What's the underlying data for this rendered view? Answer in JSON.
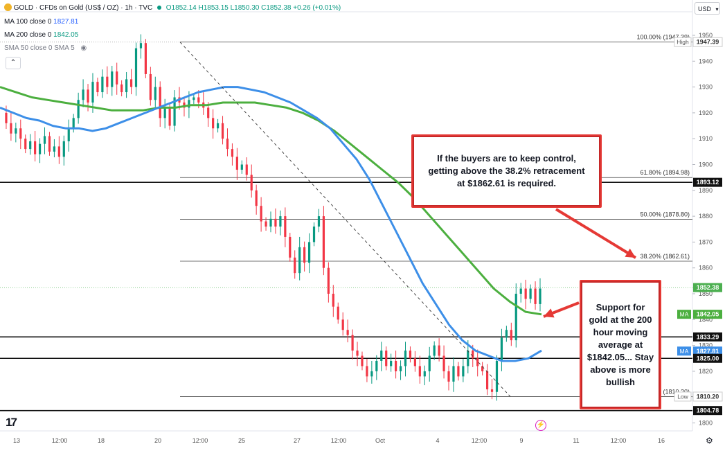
{
  "header": {
    "title": "GOLD · CFDs on Gold (US$ / OZ) · 1h · TVC",
    "ohlc": "O1852.14 H1853.15 L1850.30 C1852.38 +0.26 (+0.01%)",
    "ma100_label": "MA 100 close 0",
    "ma100_value": "1827.81",
    "ma200_label": "MA 200 close 0",
    "ma200_value": "1842.05",
    "sma_label": "SMA 50 close 0 SMA 5",
    "currency": "USD"
  },
  "callouts": {
    "top": "If the buyers are to keep control, getting above the 38.2% retracement at $1862.61 is required.",
    "right": "Support for gold at the 200 hour moving average at $1842.05... Stay above is more bullish"
  },
  "colors": {
    "ma100": "#3d8fe8",
    "ma200": "#4caf3f",
    "up": "#089981",
    "down": "#f23645",
    "arrow": "#e53935",
    "price_tag": "#4caf50"
  },
  "chart_data": {
    "type": "candlestick",
    "y_ticks": [
      1800,
      1810,
      1820,
      1830,
      1840,
      1850,
      1860,
      1870,
      1880,
      1890,
      1900,
      1910,
      1920,
      1930,
      1940,
      1950
    ],
    "ylim": [
      1797.5,
      1955
    ],
    "x_ticks": [
      "13",
      "12:00",
      "18",
      "20",
      "12:00",
      "25",
      "27",
      "12:00",
      "Oct",
      "4",
      "12:00",
      "9",
      "11",
      "12:00",
      "16"
    ],
    "fib_levels": [
      {
        "label": "100.00% (1947.39)",
        "value": 1947.39
      },
      {
        "label": "61.80% (1894.98)",
        "value": 1894.98
      },
      {
        "label": "50.00% (1878.80)",
        "value": 1878.8
      },
      {
        "label": "38.20% (1862.61)",
        "value": 1862.61
      },
      {
        "label": "(1810.20)",
        "value": 1810.2
      }
    ],
    "horizontal_lines": [
      1893.12,
      1833.29,
      1825.0,
      1804.78
    ],
    "price_labels": [
      {
        "text": "High",
        "value": "1947.39",
        "price": 1947.39,
        "style": "outline"
      },
      {
        "text": "",
        "value": "1893.12",
        "price": 1893.12,
        "style": "black"
      },
      {
        "text": "",
        "value": "1852.38",
        "price": 1852.38,
        "style": "price"
      },
      {
        "text": "MA",
        "value": "1842.05",
        "price": 1842.05,
        "style": "ma200"
      },
      {
        "text": "",
        "value": "1833.29",
        "price": 1833.29,
        "style": "black"
      },
      {
        "text": "MA",
        "value": "1827.81",
        "price": 1827.81,
        "style": "ma100"
      },
      {
        "text": "",
        "value": "1825.00",
        "price": 1825.0,
        "style": "black"
      },
      {
        "text": "Low",
        "value": "1810.20",
        "price": 1810.2,
        "style": "outline"
      },
      {
        "text": "",
        "value": "1804.78",
        "price": 1804.78,
        "style": "black"
      }
    ],
    "price_path": [
      1920,
      1916,
      1912,
      1914,
      1910,
      1906,
      1909,
      1904,
      1908,
      1911,
      1905,
      1907,
      1903,
      1909,
      1914,
      1918,
      1925,
      1929,
      1924,
      1932,
      1928,
      1934,
      1930,
      1936,
      1931,
      1928,
      1933,
      1930,
      1945,
      1947,
      1935,
      1925,
      1930,
      1918,
      1922,
      1915,
      1926,
      1924,
      1922,
      1925,
      1926,
      1924,
      1922,
      1918,
      1914,
      1916,
      1910,
      1906,
      1903,
      1898,
      1900,
      1896,
      1890,
      1884,
      1878,
      1876,
      1879,
      1876,
      1880,
      1872,
      1864,
      1858,
      1868,
      1862,
      1870,
      1876,
      1880,
      1860,
      1850,
      1845,
      1840,
      1836,
      1834,
      1828,
      1826,
      1822,
      1818,
      1820,
      1824,
      1828,
      1822,
      1824,
      1820,
      1822,
      1828,
      1825,
      1822,
      1818,
      1820,
      1826,
      1830,
      1826,
      1820,
      1816,
      1822,
      1818,
      1822,
      1828,
      1825,
      1822,
      1820,
      1813,
      1812,
      1824,
      1833,
      1836,
      1832,
      1850,
      1852,
      1848,
      1852,
      1846,
      1852
    ],
    "ma100_path": [
      1922,
      1920,
      1918,
      1917,
      1915,
      1914,
      1914,
      1913,
      1914,
      1916,
      1918,
      1920,
      1922,
      1924,
      1926,
      1928,
      1929,
      1930,
      1930,
      1929,
      1928,
      1926,
      1924,
      1921,
      1918,
      1914,
      1908,
      1902,
      1894,
      1884,
      1874,
      1864,
      1854,
      1846,
      1838,
      1832,
      1828,
      1826,
      1824,
      1824,
      1825,
      1828
    ],
    "ma200_path": [
      1930,
      1928,
      1926,
      1925,
      1924,
      1923,
      1922,
      1921,
      1921,
      1921,
      1922,
      1922,
      1923,
      1923,
      1924,
      1924,
      1924,
      1923,
      1922,
      1920,
      1917,
      1913,
      1908,
      1903,
      1898,
      1893,
      1887,
      1880,
      1873,
      1866,
      1859,
      1852,
      1847,
      1843,
      1842
    ]
  }
}
